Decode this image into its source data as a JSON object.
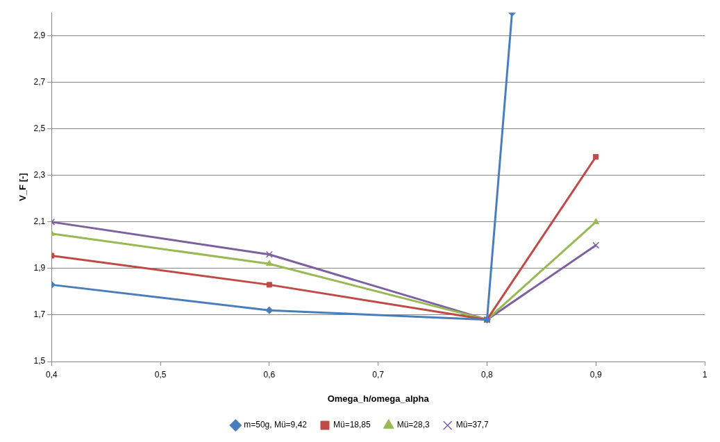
{
  "chart_data": {
    "type": "line",
    "xlabel": "Omega_h/omega_alpha",
    "ylabel": "V_F [-]",
    "x": [
      0.4,
      0.6,
      0.8,
      0.9
    ],
    "series": [
      {
        "name": "m=50g, Mü=9,42",
        "color": "#4a7ebb",
        "marker": "diamond",
        "x": [
          0.4,
          0.6,
          0.8,
          0.823
        ],
        "values": [
          1.83,
          1.72,
          1.68,
          3.0
        ]
      },
      {
        "name": "Mü=18,85",
        "color": "#be4b48",
        "marker": "square",
        "values": [
          1.955,
          1.83,
          1.68,
          2.38
        ]
      },
      {
        "name": "Mü=28,3",
        "color": "#98b954",
        "marker": "triangle",
        "values": [
          2.05,
          1.92,
          1.68,
          2.1
        ]
      },
      {
        "name": "Mü=37,7",
        "color": "#7d60a0",
        "marker": "cross",
        "values": [
          2.1,
          1.96,
          1.68,
          2.0
        ]
      }
    ],
    "xlim": [
      0.4,
      1
    ],
    "xticks": [
      {
        "value": 0.4,
        "label": "0,4"
      },
      {
        "value": 0.5,
        "label": "0,5"
      },
      {
        "value": 0.6,
        "label": "0,6"
      },
      {
        "value": 0.7,
        "label": "0,7"
      },
      {
        "value": 0.8,
        "label": "0,8"
      },
      {
        "value": 0.9,
        "label": "0,9"
      },
      1
    ],
    "ylim": [
      1.5,
      3.0
    ],
    "yticks": [
      {
        "value": 1.5,
        "label": "1,5"
      },
      {
        "value": 1.7,
        "label": "1,7"
      },
      {
        "value": 1.9,
        "label": "1,9"
      },
      {
        "value": 2.1,
        "label": "2,1"
      },
      {
        "value": 2.3,
        "label": "2,3"
      },
      {
        "value": 2.5,
        "label": "2,5"
      },
      {
        "value": 2.7,
        "label": "2,7"
      },
      {
        "value": 2.9,
        "label": "2,9"
      }
    ],
    "grid": "y",
    "legend": "bottom",
    "line_style": "solid"
  }
}
